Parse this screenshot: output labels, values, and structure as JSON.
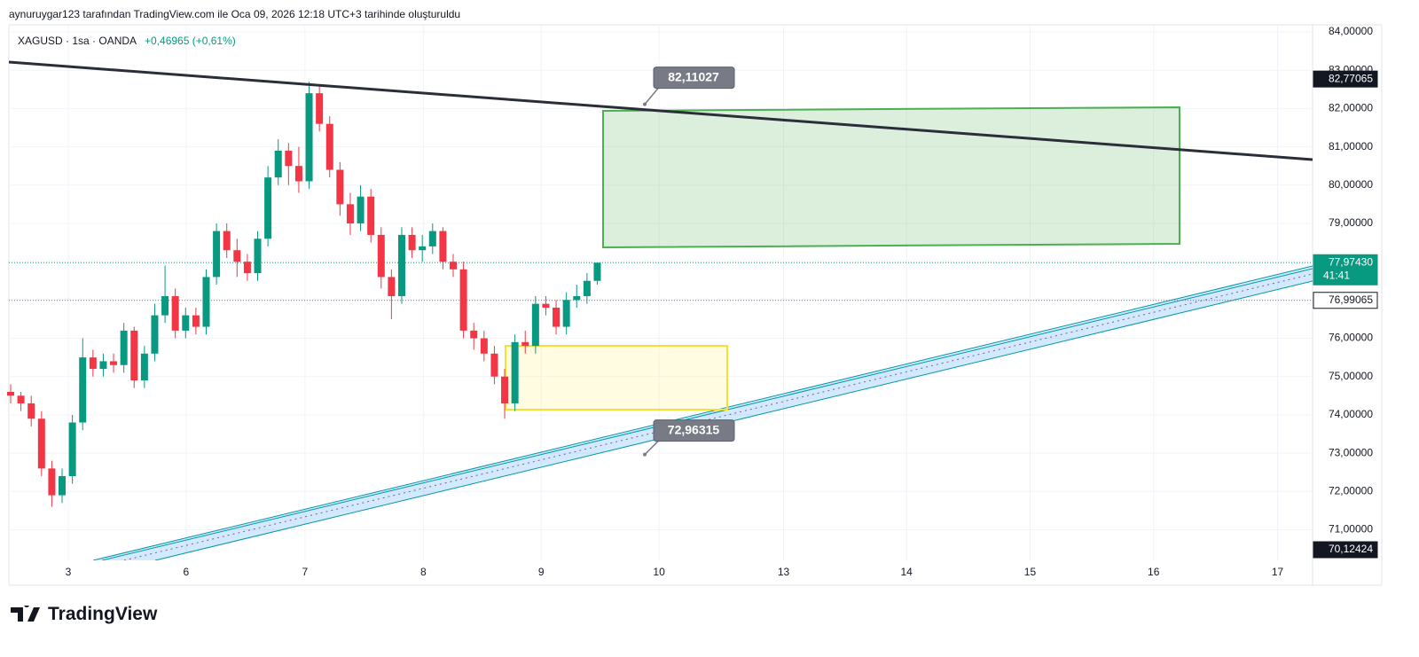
{
  "header": {
    "attribution": "aynuruygar123 tarafından TradingView.com ile Oca 09, 2026 12:18 UTC+3 tarihinde oluşturuldu",
    "symbol": "XAGUSD · 1sa · OANDA",
    "change": "+0,46965 (+0,61%)"
  },
  "chart_data": {
    "type": "candlestick",
    "x": [
      0,
      2,
      4,
      6,
      8,
      10,
      12,
      14,
      16,
      18,
      20,
      22,
      24,
      26,
      28,
      30,
      32,
      34,
      36,
      38,
      40,
      42,
      44,
      46,
      48,
      50,
      52,
      54,
      56,
      58,
      60,
      62,
      64,
      66,
      68,
      70,
      72,
      74,
      76,
      78,
      80,
      82,
      84,
      86,
      88,
      90,
      92,
      94,
      96,
      98,
      100,
      102,
      104,
      106,
      108,
      110,
      112,
      114
    ],
    "ohlc": [
      [
        74.6,
        74.8,
        74.3,
        74.5
      ],
      [
        74.5,
        74.6,
        74.1,
        74.3
      ],
      [
        74.3,
        74.5,
        73.7,
        73.9
      ],
      [
        73.9,
        74.1,
        72.4,
        72.6
      ],
      [
        72.6,
        72.8,
        71.6,
        71.9
      ],
      [
        71.9,
        72.6,
        71.7,
        72.4
      ],
      [
        72.4,
        74.0,
        72.2,
        73.8
      ],
      [
        73.8,
        76.0,
        73.6,
        75.5
      ],
      [
        75.5,
        75.7,
        75.0,
        75.2
      ],
      [
        75.2,
        75.6,
        75.0,
        75.4
      ],
      [
        75.4,
        75.6,
        75.1,
        75.3
      ],
      [
        75.3,
        76.4,
        75.1,
        76.2
      ],
      [
        76.2,
        76.3,
        74.7,
        74.9
      ],
      [
        74.9,
        75.8,
        74.7,
        75.6
      ],
      [
        75.6,
        76.9,
        75.4,
        76.6
      ],
      [
        76.6,
        77.9,
        76.4,
        77.1
      ],
      [
        77.1,
        77.3,
        76.0,
        76.2
      ],
      [
        76.2,
        76.8,
        76.0,
        76.6
      ],
      [
        76.6,
        76.8,
        76.1,
        76.3
      ],
      [
        76.3,
        77.8,
        76.1,
        77.6
      ],
      [
        77.6,
        79.0,
        77.4,
        78.8
      ],
      [
        78.8,
        79.0,
        78.1,
        78.3
      ],
      [
        78.3,
        78.6,
        77.6,
        78.0
      ],
      [
        78.0,
        78.2,
        77.5,
        77.7
      ],
      [
        77.7,
        78.8,
        77.5,
        78.6
      ],
      [
        78.6,
        80.5,
        78.4,
        80.2
      ],
      [
        80.2,
        81.2,
        80.0,
        80.9
      ],
      [
        80.9,
        81.1,
        80.0,
        80.5
      ],
      [
        80.5,
        81.0,
        79.8,
        80.1
      ],
      [
        80.1,
        82.7,
        79.9,
        82.4
      ],
      [
        82.4,
        82.6,
        81.4,
        81.6
      ],
      [
        81.6,
        81.8,
        80.2,
        80.4
      ],
      [
        80.4,
        80.6,
        79.2,
        79.5
      ],
      [
        79.5,
        79.8,
        78.7,
        79.0
      ],
      [
        79.0,
        80.0,
        78.8,
        79.7
      ],
      [
        79.7,
        79.9,
        78.5,
        78.7
      ],
      [
        78.7,
        78.9,
        77.3,
        77.6
      ],
      [
        77.6,
        77.8,
        76.5,
        77.1
      ],
      [
        77.1,
        78.9,
        76.9,
        78.7
      ],
      [
        78.7,
        78.9,
        78.1,
        78.3
      ],
      [
        78.3,
        78.7,
        78.0,
        78.4
      ],
      [
        78.4,
        79.0,
        78.2,
        78.8
      ],
      [
        78.8,
        78.9,
        77.8,
        78.0
      ],
      [
        78.0,
        78.2,
        77.6,
        77.8
      ],
      [
        77.8,
        78.0,
        76.0,
        76.2
      ],
      [
        76.2,
        76.4,
        75.7,
        76.0
      ],
      [
        76.0,
        76.2,
        75.4,
        75.6
      ],
      [
        75.6,
        75.8,
        74.8,
        75.0
      ],
      [
        75.0,
        75.2,
        73.9,
        74.3
      ],
      [
        74.3,
        76.1,
        74.1,
        75.9
      ],
      [
        75.9,
        76.2,
        75.6,
        75.8
      ],
      [
        75.8,
        77.1,
        75.6,
        76.9
      ],
      [
        76.9,
        77.1,
        76.6,
        76.8
      ],
      [
        76.8,
        77.0,
        76.1,
        76.3
      ],
      [
        76.3,
        77.2,
        76.1,
        77.0
      ],
      [
        77.0,
        77.4,
        76.8,
        77.1
      ],
      [
        77.1,
        77.7,
        76.9,
        77.5
      ],
      [
        77.5,
        77.9743,
        77.4,
        77.9743
      ]
    ],
    "up_color": "#089981",
    "down_color": "#f23645",
    "xlim": [
      0,
      253
    ],
    "ylim": [
      70.2,
      84.14
    ],
    "xticks": [
      {
        "value": 11.2,
        "label": "3"
      },
      {
        "value": 34.1,
        "label": "6"
      },
      {
        "value": 57.2,
        "label": "7"
      },
      {
        "value": 80.2,
        "label": "8"
      },
      {
        "value": 103.1,
        "label": "9"
      },
      {
        "value": 126,
        "label": "10"
      },
      {
        "value": 150.2,
        "label": "13"
      },
      {
        "value": 174.1,
        "label": "14"
      },
      {
        "value": 198.1,
        "label": "15"
      },
      {
        "value": 222.1,
        "label": "16"
      },
      {
        "value": 246.2,
        "label": "17"
      }
    ],
    "yticks": [
      {
        "value": 84,
        "label": "84,00000"
      },
      {
        "value": 83,
        "label": "83,00000"
      },
      {
        "value": 82,
        "label": "82,00000"
      },
      {
        "value": 81,
        "label": "81,00000"
      },
      {
        "value": 80,
        "label": "80,00000"
      },
      {
        "value": 79,
        "label": "79,00000"
      },
      {
        "value": 78,
        "label": "78,00000"
      },
      {
        "value": 77,
        "label": "77,00000"
      },
      {
        "value": 76,
        "label": "76,00000"
      },
      {
        "value": 75,
        "label": "75,00000"
      },
      {
        "value": 74,
        "label": "74,00000"
      },
      {
        "value": 73,
        "label": "73,00000"
      },
      {
        "value": 72,
        "label": "72,00000"
      },
      {
        "value": 71,
        "label": "71,00000"
      }
    ],
    "grid": true,
    "annotations": [
      {
        "value": 82.11027,
        "label": "82,11027"
      },
      {
        "value": 72.96315,
        "label": "72,96315"
      }
    ],
    "price_labels": [
      {
        "value": 82.77065,
        "label": "82,77065"
      },
      {
        "value": 77.9743,
        "label": "77,97430"
      },
      {
        "value": 76.99065,
        "label": "76,99065"
      },
      {
        "value": 70.12424,
        "label": "70,12424"
      }
    ],
    "countdown": "41:41"
  },
  "footer": {
    "logo": "TradingView"
  }
}
